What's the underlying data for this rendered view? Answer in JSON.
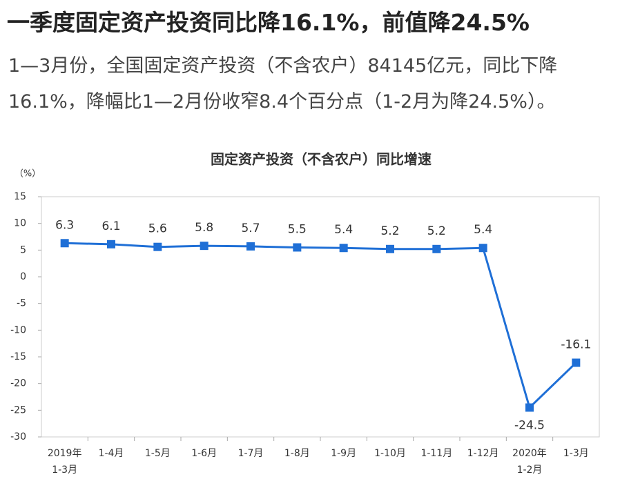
{
  "headline": "一季度固定资产投资同比降16.1%，前值降24.5%",
  "body": "1—3月份，全国固定资产投资（不含农户）84145亿元，同比下降16.1%，降幅比1—2月份收窄8.4个百分点（1-2月为降24.5%）。",
  "chart_data": {
    "type": "line",
    "title": "固定资产投资（不含农户）同比增速",
    "y_label": "（%）",
    "categories": [
      "2019年\n1-3月",
      "1-4月",
      "1-5月",
      "1-6月",
      "1-7月",
      "1-8月",
      "1-9月",
      "1-10月",
      "1-11月",
      "1-12月",
      "2020年\n1-2月",
      "1-3月"
    ],
    "series": [
      {
        "name": "固定资产投资（不含农户）同比增速",
        "color": "#1f6fd6",
        "values": [
          6.3,
          6.1,
          5.6,
          5.8,
          5.7,
          5.5,
          5.4,
          5.2,
          5.2,
          5.4,
          -24.5,
          -16.1
        ]
      }
    ],
    "ylim": [
      -30,
      15
    ],
    "yticks": [
      -30,
      -25,
      -20,
      -15,
      -10,
      -5,
      0,
      5,
      10,
      15
    ],
    "grid": false
  }
}
